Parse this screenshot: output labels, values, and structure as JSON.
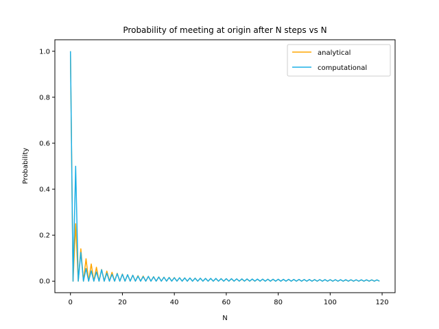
{
  "chart_data": {
    "type": "line",
    "title": "Probability of meeting at origin after N steps vs N",
    "xlabel": "N",
    "ylabel": "Probability",
    "xlim": [
      -6,
      125
    ],
    "ylim": [
      -0.05,
      1.05
    ],
    "x_ticks": [
      0,
      20,
      40,
      60,
      80,
      100,
      120
    ],
    "x_tick_labels": [
      "0",
      "20",
      "40",
      "60",
      "80",
      "100",
      "120"
    ],
    "y_ticks": [
      0.0,
      0.2,
      0.4,
      0.6,
      0.8,
      1.0
    ],
    "y_tick_labels": [
      "0.0",
      "0.2",
      "0.4",
      "0.6",
      "0.8",
      "1.0"
    ],
    "grid": false,
    "legend_position": "top-right",
    "x_range": [
      0,
      119
    ],
    "series": [
      {
        "name": "analytical",
        "color": "#FFA500",
        "even_values": [
          1.0,
          0.25,
          0.1406,
          0.0977,
          0.0748,
          0.0606,
          0.0509,
          0.0438,
          0.0385,
          0.0344,
          0.031,
          0.0282,
          0.0259,
          0.024,
          0.0223,
          0.0208,
          0.0196,
          0.0184,
          0.0174,
          0.0165,
          0.0157,
          0.015,
          0.0143,
          0.0137,
          0.0131,
          0.0126,
          0.0121,
          0.0117,
          0.0113,
          0.0109,
          0.0105,
          0.0102,
          0.0099,
          0.0096,
          0.0093,
          0.0091,
          0.0088,
          0.0086,
          0.0084,
          0.0082,
          0.008,
          0.0078,
          0.0076,
          0.0074,
          0.0073,
          0.0071,
          0.007,
          0.0068,
          0.0067,
          0.0066,
          0.0064,
          0.0063,
          0.0062,
          0.0061,
          0.006,
          0.0059,
          0.0058,
          0.0057,
          0.0056,
          0.0055
        ],
        "odd_values": 0.0
      },
      {
        "name": "computational",
        "color": "#1AAFE6",
        "even_values": [
          1.0,
          0.5,
          0.125,
          0.055,
          0.045,
          0.04,
          0.05,
          0.035,
          0.03,
          0.033,
          0.03,
          0.028,
          0.026,
          0.022,
          0.02,
          0.021,
          0.019,
          0.018,
          0.017,
          0.016,
          0.015,
          0.015,
          0.014,
          0.014,
          0.013,
          0.013,
          0.012,
          0.012,
          0.012,
          0.011,
          0.011,
          0.011,
          0.01,
          0.01,
          0.0098,
          0.0095,
          0.0092,
          0.009,
          0.0088,
          0.0086,
          0.0084,
          0.0082,
          0.008,
          0.0078,
          0.0076,
          0.0074,
          0.0072,
          0.007,
          0.0069,
          0.0068,
          0.0067,
          0.0066,
          0.0065,
          0.0064,
          0.0063,
          0.0062,
          0.0061,
          0.006,
          0.0059,
          0.0058
        ],
        "odd_values": 0.0
      }
    ]
  }
}
